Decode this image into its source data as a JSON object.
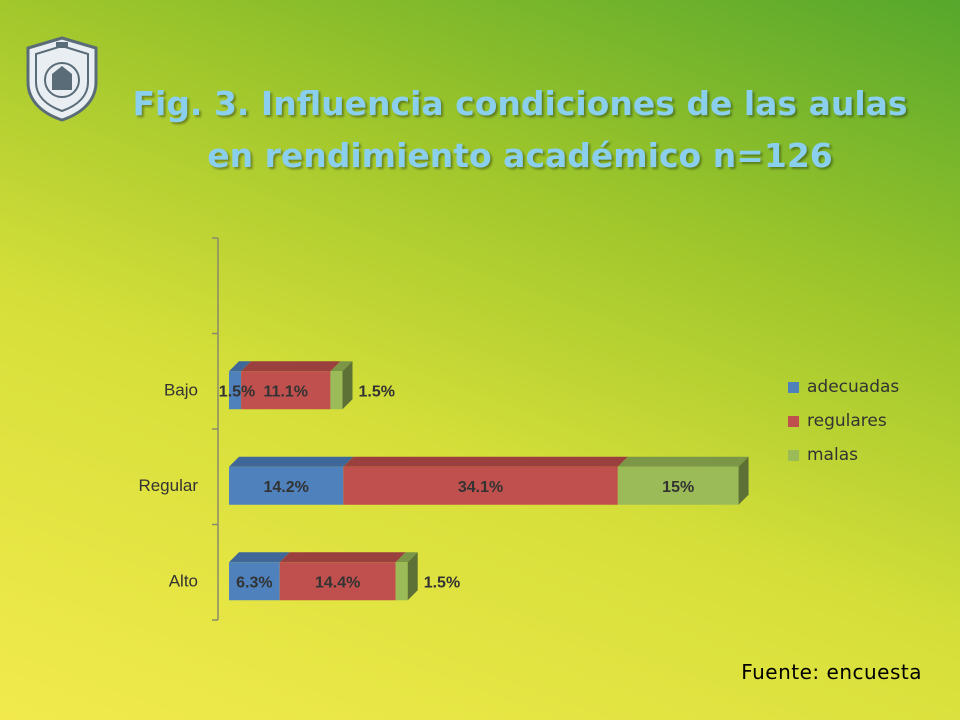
{
  "slide": {
    "title_line1": "Fig. 3. Influencia  condiciones de las aulas",
    "title_line2": "en rendimiento académico  n=126",
    "footer": "Fuente: encuesta",
    "logo": {
      "icon": "university-seal-icon"
    }
  },
  "colors": {
    "adecuadas": "#4f81bd",
    "regulares": "#c0504d",
    "malas": "#9bbb59",
    "title": "#8ad0ee"
  },
  "chart_data": {
    "type": "bar",
    "orientation": "horizontal",
    "stacked": true,
    "three_d": true,
    "categories": [
      "Alto",
      "Regular",
      "Bajo"
    ],
    "series": [
      {
        "name": "adecuadas",
        "values": [
          6.3,
          14.2,
          1.5
        ],
        "labels": [
          "6.3%",
          "14.2%",
          "1.5%"
        ]
      },
      {
        "name": "regulares",
        "values": [
          14.4,
          34.1,
          11.1
        ],
        "labels": [
          "14.4%",
          "34.1%",
          "11.1%"
        ]
      },
      {
        "name": "malas",
        "values": [
          1.5,
          15,
          1.5
        ],
        "labels": [
          "1.5%",
          "15%",
          "1.5%"
        ]
      }
    ],
    "legend_position": "right",
    "grid": false
  }
}
